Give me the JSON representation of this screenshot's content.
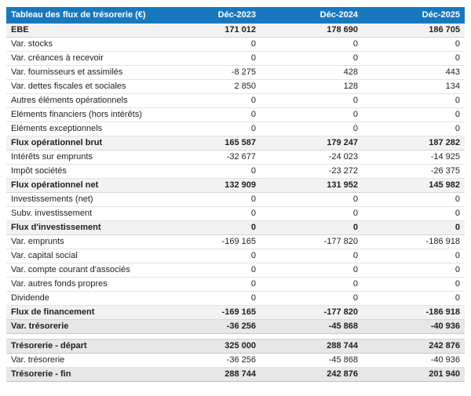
{
  "colors": {
    "header_background": "#1878be",
    "header_text": "#ffffff",
    "subtotal_row_background": "#f2f2f2",
    "total_row_background": "#e7e7e7",
    "body_text": "#1f1f1f"
  },
  "table": {
    "title": "Tableau des flux de trésorerie (€)",
    "columns": [
      "Déc-2023",
      "Déc-2024",
      "Déc-2025"
    ],
    "rows": [
      {
        "label": "EBE",
        "values": [
          "171 012",
          "178 690",
          "186 705"
        ],
        "style": "subtotal"
      },
      {
        "label": "Var. stocks",
        "values": [
          "0",
          "0",
          "0"
        ],
        "style": "normal"
      },
      {
        "label": "Var. créances à recevoir",
        "values": [
          "0",
          "0",
          "0"
        ],
        "style": "normal"
      },
      {
        "label": "Var. fournisseurs et assimilés",
        "values": [
          "-8 275",
          "428",
          "443"
        ],
        "style": "normal"
      },
      {
        "label": "Var. dettes fiscales et sociales",
        "values": [
          "2 850",
          "128",
          "134"
        ],
        "style": "normal"
      },
      {
        "label": "Autres éléments opérationnels",
        "values": [
          "0",
          "0",
          "0"
        ],
        "style": "normal"
      },
      {
        "label": "Eléments financiers (hors intérêts)",
        "values": [
          "0",
          "0",
          "0"
        ],
        "style": "normal"
      },
      {
        "label": "Eléments exceptionnels",
        "values": [
          "0",
          "0",
          "0"
        ],
        "style": "normal"
      },
      {
        "label": "Flux opérationnel brut",
        "values": [
          "165 587",
          "179 247",
          "187 282"
        ],
        "style": "subtotal"
      },
      {
        "label": "Intérêts sur emprunts",
        "values": [
          "-32 677",
          "-24 023",
          "-14 925"
        ],
        "style": "normal"
      },
      {
        "label": "Impôt sociétés",
        "values": [
          "0",
          "-23 272",
          "-26 375"
        ],
        "style": "normal"
      },
      {
        "label": "Flux opérationnel net",
        "values": [
          "132 909",
          "131 952",
          "145 982"
        ],
        "style": "subtotal"
      },
      {
        "label": "Investissements (net)",
        "values": [
          "0",
          "0",
          "0"
        ],
        "style": "normal"
      },
      {
        "label": "Subv. investissement",
        "values": [
          "0",
          "0",
          "0"
        ],
        "style": "normal"
      },
      {
        "label": "Flux d'investissement",
        "values": [
          "0",
          "0",
          "0"
        ],
        "style": "subtotal"
      },
      {
        "label": "Var. emprunts",
        "values": [
          "-169 165",
          "-177 820",
          "-186 918"
        ],
        "style": "normal"
      },
      {
        "label": "Var. capital social",
        "values": [
          "0",
          "0",
          "0"
        ],
        "style": "normal"
      },
      {
        "label": "Var. compte courant d'associés",
        "values": [
          "0",
          "0",
          "0"
        ],
        "style": "normal"
      },
      {
        "label": "Var. autres fonds propres",
        "values": [
          "0",
          "0",
          "0"
        ],
        "style": "normal"
      },
      {
        "label": "Dividende",
        "values": [
          "0",
          "0",
          "0"
        ],
        "style": "normal"
      },
      {
        "label": "Flux de financement",
        "values": [
          "-169 165",
          "-177 820",
          "-186 918"
        ],
        "style": "subtotal"
      },
      {
        "label": "Var. trésorerie",
        "values": [
          "-36 256",
          "-45 868",
          "-40 936"
        ],
        "style": "total"
      },
      {
        "label": "Trésorerie - départ",
        "values": [
          "325 000",
          "288 744",
          "242 876"
        ],
        "style": "total",
        "spacer_before": true
      },
      {
        "label": "Var. trésorerie",
        "values": [
          "-36 256",
          "-45 868",
          "-40 936"
        ],
        "style": "normal"
      },
      {
        "label": "Trésorerie - fin",
        "values": [
          "288 744",
          "242 876",
          "201 940"
        ],
        "style": "total"
      }
    ]
  }
}
